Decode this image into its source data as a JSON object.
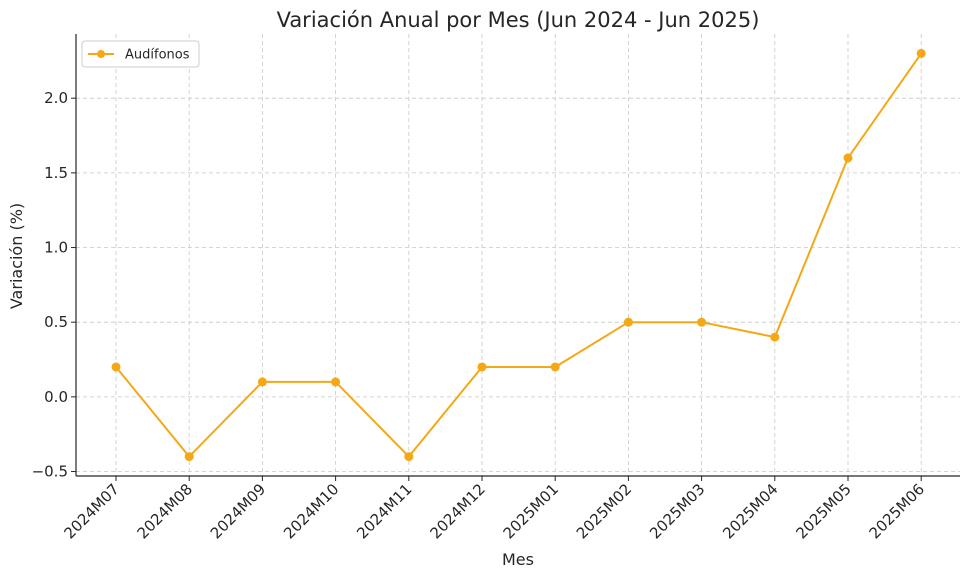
{
  "chart_data": {
    "type": "line",
    "title": "Variación Anual por Mes (Jun 2024 - Jun 2025)",
    "xlabel": "Mes",
    "ylabel": "Variación (%)",
    "categories": [
      "2024M07",
      "2024M08",
      "2024M09",
      "2024M10",
      "2024M11",
      "2024M12",
      "2025M01",
      "2025M02",
      "2025M03",
      "2025M04",
      "2025M05",
      "2025M06"
    ],
    "series": [
      {
        "name": "Audífonos",
        "values": [
          0.2,
          -0.4,
          0.1,
          0.1,
          -0.4,
          0.2,
          0.2,
          0.5,
          0.5,
          0.4,
          1.6,
          2.3
        ],
        "color": "#f5a816"
      }
    ],
    "ylim": [
      -0.53,
      2.43
    ],
    "yticks": [
      -0.5,
      0.0,
      0.5,
      1.0,
      1.5,
      2.0
    ],
    "ytick_labels": [
      "−0.5",
      "0.0",
      "0.5",
      "1.0",
      "1.5",
      "2.0"
    ],
    "grid": true,
    "legend_position": "top-left"
  }
}
